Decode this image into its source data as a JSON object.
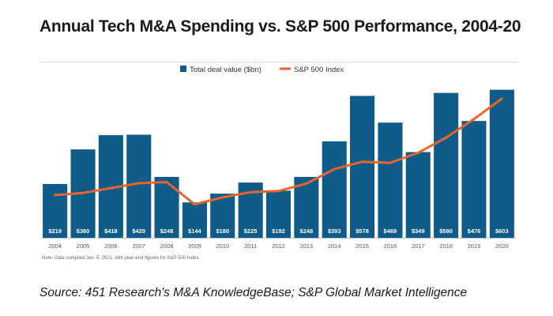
{
  "title": "Annual Tech M&A Spending vs. S&P 500 Performance, 2004-20",
  "source": "Source: 451 Research's M&A KnowledgeBase; S&P Global Market Intelligence",
  "chart_data": {
    "type": "bar",
    "categories": [
      "2004",
      "2005",
      "2006",
      "2007",
      "2008",
      "2009",
      "2010",
      "2011",
      "2012",
      "2013",
      "2014",
      "2015",
      "2016",
      "2017",
      "2018",
      "2019",
      "2020"
    ],
    "series": [
      {
        "name": "Total deal value ($bn)",
        "kind": "bar",
        "color": "#0f5b8a",
        "values": [
          219,
          360,
          418,
          420,
          248,
          144,
          180,
          225,
          192,
          248,
          393,
          578,
          469,
          349,
          590,
          476,
          603
        ],
        "labels": [
          "$219",
          "$360",
          "$418",
          "$420",
          "$248",
          "$144",
          "$180",
          "$225",
          "$192",
          "$248",
          "$393",
          "$578",
          "$469",
          "$349",
          "$590",
          "$476",
          "$603"
        ]
      },
      {
        "name": "S&P 500 Index",
        "kind": "line",
        "color": "#e8652a",
        "values": [
          1150,
          1210,
          1340,
          1470,
          1500,
          900,
          1090,
          1230,
          1260,
          1460,
          1850,
          2050,
          2020,
          2290,
          2700,
          3200,
          3750
        ]
      }
    ],
    "ylim": [
      0,
      650
    ],
    "ylim_secondary": [
      0,
      4300
    ],
    "legend_position": "top",
    "note": "Note: Data compiled Jan. 5, 2021, with year-end figures for S&P 500 Index."
  }
}
